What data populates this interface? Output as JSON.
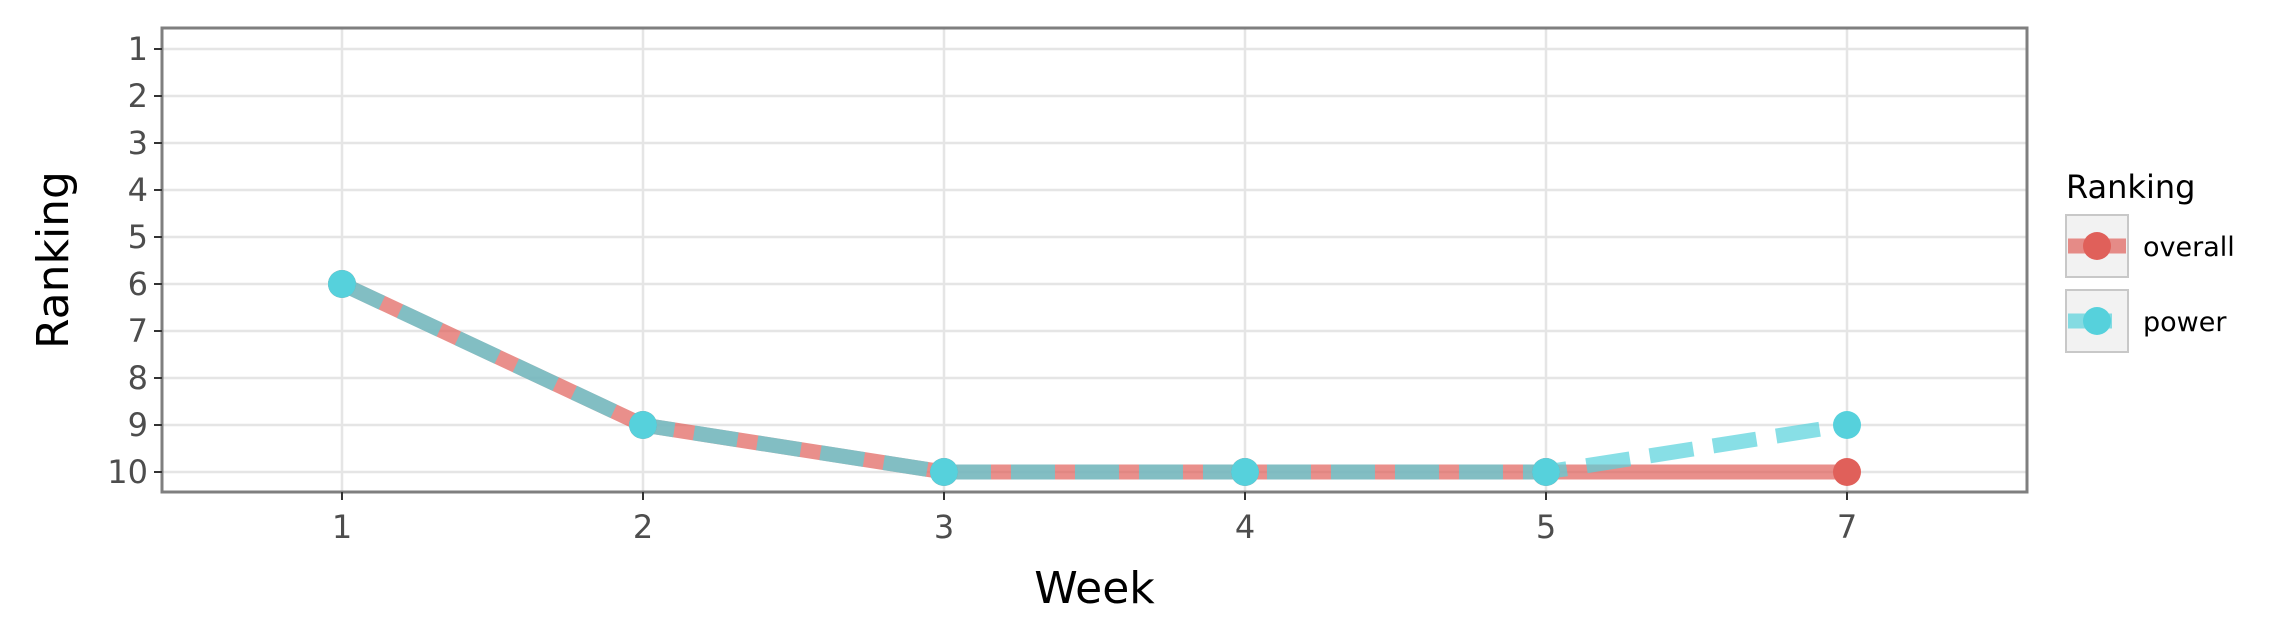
{
  "chart_data": {
    "type": "line",
    "xlabel": "Week",
    "ylabel": "Ranking",
    "x_categories": [
      "1",
      "2",
      "3",
      "4",
      "5",
      "7"
    ],
    "y_ticks": [
      1,
      2,
      3,
      4,
      5,
      6,
      7,
      8,
      9,
      10
    ],
    "y_reversed": true,
    "ylim": [
      1,
      10
    ],
    "grid": true,
    "legend": {
      "title": "Ranking",
      "placement": "right",
      "entries": [
        "overall",
        "power"
      ]
    },
    "series": [
      {
        "name": "overall",
        "color": "#e0605a",
        "line_style": "solid",
        "x": [
          "1",
          "2",
          "3",
          "4",
          "5",
          "7"
        ],
        "values": [
          6,
          9,
          10,
          10,
          10,
          10
        ]
      },
      {
        "name": "power",
        "color": "#56d1dc",
        "line_style": "dashed",
        "x": [
          "1",
          "2",
          "3",
          "4",
          "5",
          "7"
        ],
        "values": [
          6,
          9,
          10,
          10,
          10,
          9
        ]
      }
    ]
  }
}
